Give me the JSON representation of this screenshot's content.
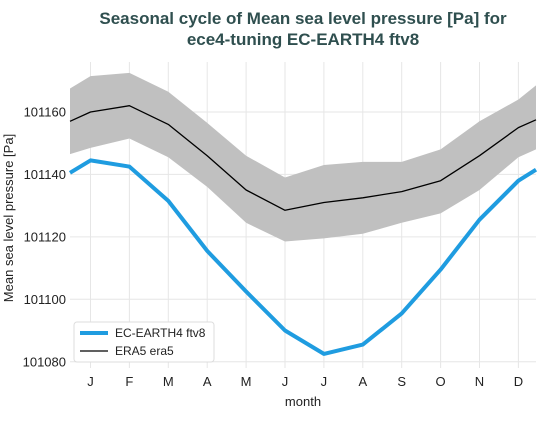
{
  "chart_data": {
    "type": "line",
    "title": [
      "Seasonal cycle of Mean sea level pressure [Pa] for",
      "ece4-tuning EC-EARTH4 ftv8"
    ],
    "xlabel": "month",
    "ylabel": "Mean sea level pressure [Pa]",
    "x_ticks": [
      "J",
      "F",
      "M",
      "A",
      "M",
      "J",
      "J",
      "A",
      "S",
      "O",
      "N",
      "D"
    ],
    "y_ticks": [
      101080,
      101100,
      101120,
      101140,
      101160
    ],
    "ylim": [
      101078,
      101176
    ],
    "grid": true,
    "legend_position": "bottom-left",
    "series": [
      {
        "name": "EC-EARTH4 ftv8",
        "color": "#1f9ce0",
        "values": [
          101144.5,
          101142.5,
          101131.5,
          101115.5,
          101102.5,
          101090.0,
          101082.5,
          101085.5,
          101095.5,
          101109.5,
          101125.5,
          101138.0
        ],
        "edge_start": 101140.5,
        "edge_end": 101141.5
      },
      {
        "name": "ERA5 era5",
        "color": "#000000",
        "values": [
          101160.0,
          101162.0,
          101156.0,
          101146.0,
          101135.0,
          101128.5,
          101131.0,
          101132.5,
          101134.5,
          101138.0,
          101146.0,
          101155.0
        ],
        "edge_start": 101157.0,
        "edge_end": 101157.5,
        "band_upper": [
          101171.5,
          101172.5,
          101166.5,
          101156.5,
          101146.0,
          101139.0,
          101143.0,
          101144.0,
          101144.0,
          101148.0,
          101157.0,
          101164.0
        ],
        "band_lower": [
          101148.5,
          101151.5,
          101145.5,
          101136.0,
          101124.5,
          101118.5,
          101119.5,
          101121.0,
          101124.5,
          101127.5,
          101135.0,
          101145.5
        ],
        "band_upper_edge": [
          101167.5,
          101168.5
        ],
        "band_lower_edge": [
          101146.5,
          101148.0
        ],
        "band_color": "#c0c0c0"
      }
    ]
  }
}
